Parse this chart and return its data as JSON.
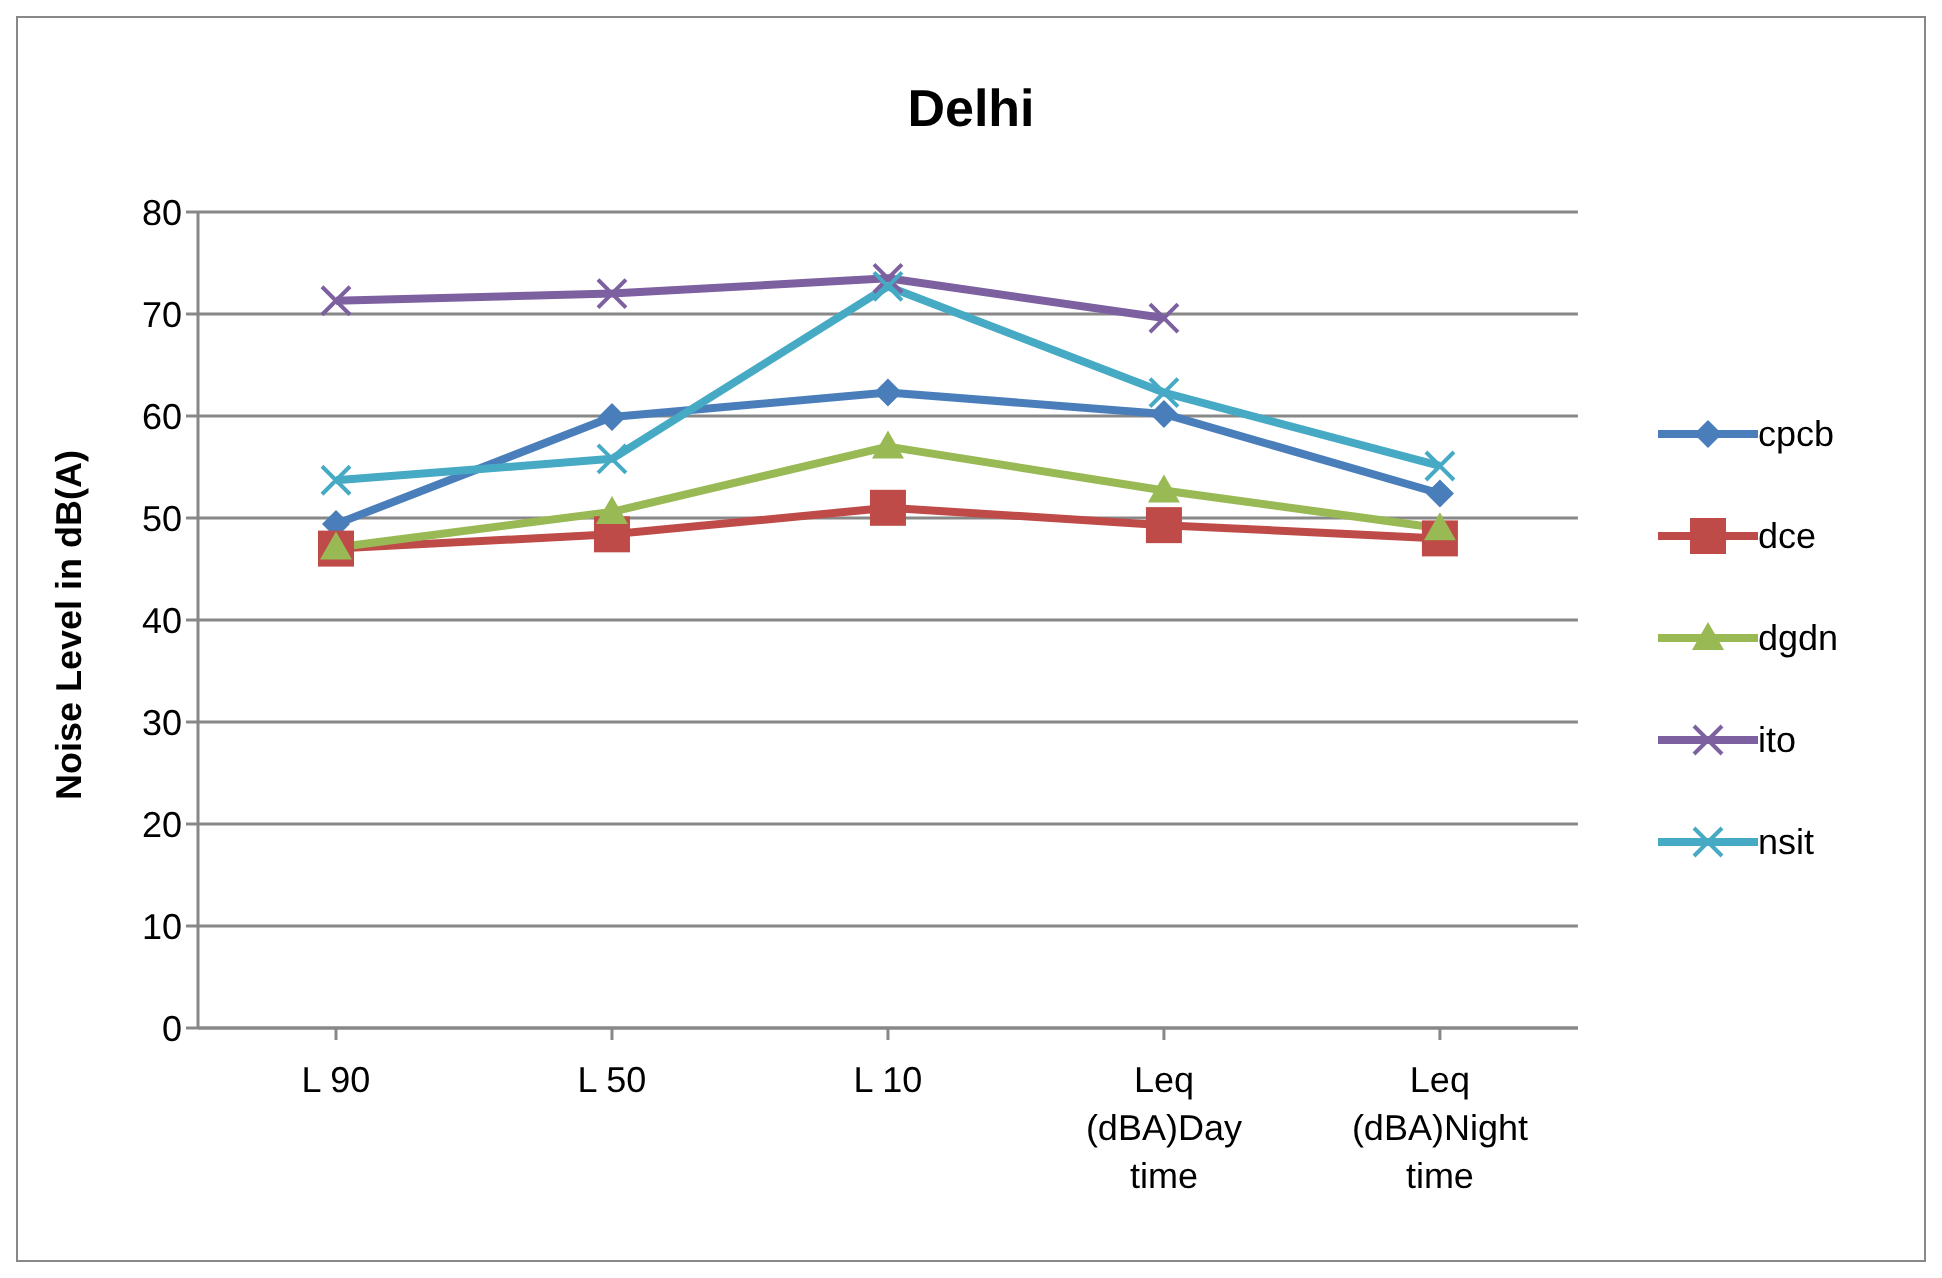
{
  "chart_data": {
    "type": "line",
    "title": "Delhi",
    "ylabel": "Noise Level in dB(A)",
    "categories": [
      "L 90",
      "L 50",
      "L 10",
      "Leq (dBA)Day time",
      "Leq (dBA)Night time"
    ],
    "series": [
      {
        "name": "cpcb",
        "color": "#4a7ebb",
        "marker": "diamond",
        "values": [
          49.4,
          59.9,
          62.3,
          60.2,
          52.4
        ]
      },
      {
        "name": "dce",
        "color": "#be4b48",
        "marker": "square",
        "values": [
          47.0,
          48.4,
          51.0,
          49.3,
          48.0
        ]
      },
      {
        "name": "dgdn",
        "color": "#98b954",
        "marker": "triangle",
        "values": [
          47.1,
          50.6,
          57.0,
          52.7,
          49.0
        ]
      },
      {
        "name": "ito",
        "color": "#7d60a0",
        "marker": "cross",
        "values": [
          71.3,
          72.0,
          73.5,
          69.6,
          null
        ]
      },
      {
        "name": "nsit",
        "color": "#46aac5",
        "marker": "cross",
        "values": [
          53.7,
          55.8,
          72.7,
          62.3,
          55.1
        ]
      }
    ],
    "ylim": [
      0,
      80
    ],
    "yticks": [
      0,
      10,
      20,
      30,
      40,
      50,
      60,
      70,
      80
    ],
    "grid": "y",
    "legend": "right"
  }
}
